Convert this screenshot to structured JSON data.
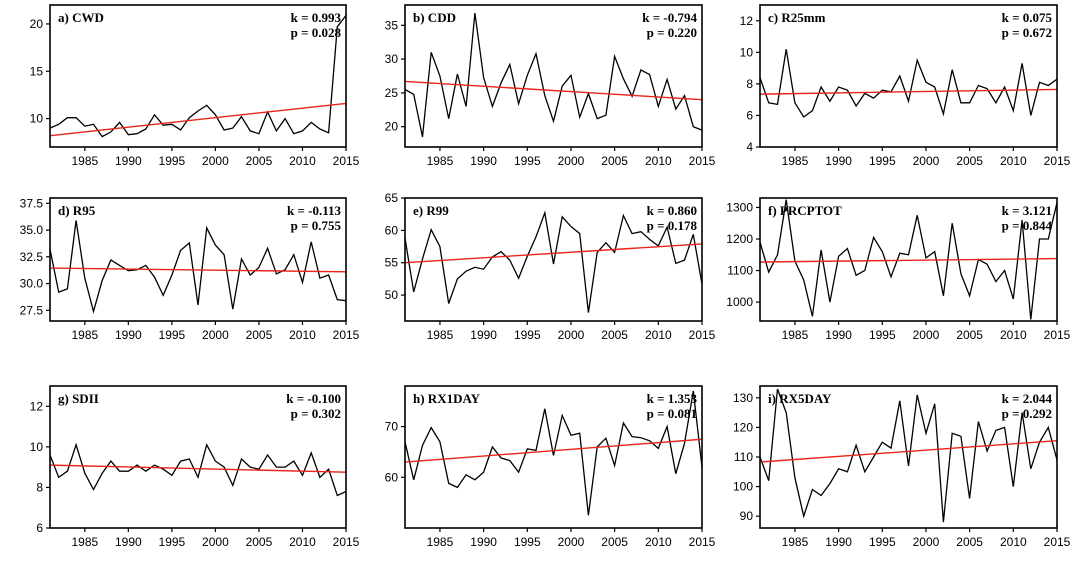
{
  "colors": {
    "series": "#000000",
    "trend": "#e8241c",
    "axis": "#000000"
  },
  "chart_data": [
    {
      "type": "line",
      "title": "a) CWD",
      "k": "k = 0.993",
      "p": "p = 0.028",
      "xlim": [
        1981,
        2015
      ],
      "ylim": [
        7,
        22
      ],
      "xticks": [
        1985,
        1990,
        1995,
        2000,
        2005,
        2010,
        2015
      ],
      "yticks": [
        10,
        15,
        20
      ],
      "ytick_labels": [
        "10",
        "15",
        "20"
      ],
      "x": [
        1981,
        1982,
        1983,
        1984,
        1985,
        1986,
        1987,
        1988,
        1989,
        1990,
        1991,
        1992,
        1993,
        1994,
        1995,
        1996,
        1997,
        1998,
        1999,
        2000,
        2001,
        2002,
        2003,
        2004,
        2005,
        2006,
        2007,
        2008,
        2009,
        2010,
        2011,
        2012,
        2013,
        2014,
        2015
      ],
      "values": [
        9.0,
        9.4,
        10.1,
        10.1,
        9.2,
        9.4,
        8.1,
        8.6,
        9.6,
        8.3,
        8.4,
        8.9,
        10.4,
        9.3,
        9.4,
        8.8,
        10.1,
        10.8,
        11.4,
        10.4,
        8.8,
        9.0,
        10.2,
        8.7,
        8.4,
        10.7,
        8.7,
        10.0,
        8.4,
        8.7,
        9.6,
        8.9,
        8.5,
        19.7,
        20.9
      ],
      "trend": [
        8.2,
        11.6
      ]
    },
    {
      "type": "line",
      "title": "b) CDD",
      "k": "k = -0.794",
      "p": "p = 0.220",
      "xlim": [
        1981,
        2015
      ],
      "ylim": [
        17,
        38
      ],
      "xticks": [
        1985,
        1990,
        1995,
        2000,
        2005,
        2010,
        2015
      ],
      "yticks": [
        20,
        25,
        30,
        35
      ],
      "ytick_labels": [
        "20",
        "25",
        "30",
        "35"
      ],
      "x": [
        1981,
        1982,
        1983,
        1984,
        1985,
        1986,
        1987,
        1988,
        1989,
        1990,
        1991,
        1992,
        1993,
        1994,
        1995,
        1996,
        1997,
        1998,
        1999,
        2000,
        2001,
        2002,
        2003,
        2004,
        2005,
        2006,
        2007,
        2008,
        2009,
        2010,
        2011,
        2012,
        2013,
        2014,
        2015
      ],
      "values": [
        25.5,
        24.8,
        18.5,
        31.0,
        27.5,
        21.2,
        27.8,
        23.0,
        36.8,
        27.3,
        23.0,
        26.5,
        29.2,
        23.4,
        27.6,
        30.8,
        24.6,
        20.8,
        26.0,
        27.6,
        21.4,
        24.9,
        21.2,
        21.7,
        30.4,
        27.1,
        24.5,
        28.4,
        27.7,
        23.0,
        27.0,
        22.6,
        24.6,
        20.0,
        19.5
      ],
      "trend": [
        26.7,
        24.0
      ]
    },
    {
      "type": "line",
      "title": "c) R25mm",
      "k": "k = 0.075",
      "p": "p = 0.672",
      "xlim": [
        1981,
        2015
      ],
      "ylim": [
        4,
        13
      ],
      "xticks": [
        1985,
        1990,
        1995,
        2000,
        2005,
        2010,
        2015
      ],
      "yticks": [
        4,
        6,
        8,
        10,
        12
      ],
      "ytick_labels": [
        "4",
        "6",
        "8",
        "10",
        "12"
      ],
      "x": [
        1981,
        1982,
        1983,
        1984,
        1985,
        1986,
        1987,
        1988,
        1989,
        1990,
        1991,
        1992,
        1993,
        1994,
        1995,
        1996,
        1997,
        1998,
        1999,
        2000,
        2001,
        2002,
        2003,
        2004,
        2005,
        2006,
        2007,
        2008,
        2009,
        2010,
        2011,
        2012,
        2013,
        2014,
        2015
      ],
      "values": [
        8.4,
        6.8,
        6.7,
        10.2,
        6.8,
        5.9,
        6.3,
        7.8,
        6.9,
        7.8,
        7.6,
        6.6,
        7.4,
        7.1,
        7.6,
        7.5,
        8.5,
        6.9,
        9.5,
        8.1,
        7.8,
        6.1,
        8.9,
        6.8,
        6.8,
        7.9,
        7.7,
        6.8,
        7.8,
        6.3,
        9.3,
        6.0,
        8.1,
        7.9,
        8.3
      ],
      "trend": [
        7.35,
        7.65
      ]
    },
    {
      "type": "line",
      "title": "d) R95",
      "k": "k = -0.113",
      "p": "p = 0.755",
      "xlim": [
        1981,
        2015
      ],
      "ylim": [
        26.5,
        38.0
      ],
      "xticks": [
        1985,
        1990,
        1995,
        2000,
        2005,
        2010,
        2015
      ],
      "yticks": [
        27.5,
        30.0,
        32.5,
        35.0,
        37.5
      ],
      "ytick_labels": [
        "27.5",
        "30.0",
        "32.5",
        "35.0",
        "37.5"
      ],
      "x": [
        1981,
        1982,
        1983,
        1984,
        1985,
        1986,
        1987,
        1988,
        1989,
        1990,
        1991,
        1992,
        1993,
        1994,
        1995,
        1996,
        1997,
        1998,
        1999,
        2000,
        2001,
        2002,
        2003,
        2004,
        2005,
        2006,
        2007,
        2008,
        2009,
        2010,
        2011,
        2012,
        2013,
        2014,
        2015
      ],
      "values": [
        33.2,
        29.2,
        29.5,
        35.9,
        30.5,
        27.4,
        30.3,
        32.2,
        31.7,
        31.2,
        31.3,
        31.7,
        30.6,
        28.9,
        30.8,
        33.1,
        33.8,
        28.0,
        35.2,
        33.6,
        32.7,
        27.6,
        32.3,
        30.8,
        31.5,
        33.3,
        30.9,
        31.3,
        32.7,
        30.1,
        33.9,
        30.5,
        30.8,
        28.5,
        28.4
      ],
      "trend": [
        31.45,
        31.1
      ]
    },
    {
      "type": "line",
      "title": "e) R99",
      "k": "k = 0.860",
      "p": "p = 0.178",
      "xlim": [
        1981,
        2015
      ],
      "ylim": [
        46,
        65
      ],
      "xticks": [
        1985,
        1990,
        1995,
        2000,
        2005,
        2010,
        2015
      ],
      "yticks": [
        50,
        55,
        60,
        65
      ],
      "ytick_labels": [
        "50",
        "55",
        "60",
        "65"
      ],
      "x": [
        1981,
        1982,
        1983,
        1984,
        1985,
        1986,
        1987,
        1988,
        1989,
        1990,
        1991,
        1992,
        1993,
        1994,
        1995,
        1996,
        1997,
        1998,
        1999,
        2000,
        2001,
        2002,
        2003,
        2004,
        2005,
        2006,
        2007,
        2008,
        2009,
        2010,
        2011,
        2012,
        2013,
        2014,
        2015
      ],
      "values": [
        58.8,
        50.5,
        55.6,
        60.1,
        57.5,
        48.7,
        52.5,
        53.7,
        54.3,
        54.0,
        55.9,
        56.7,
        55.4,
        52.6,
        56.0,
        59.0,
        62.7,
        54.8,
        62.1,
        60.6,
        59.5,
        47.3,
        56.6,
        58.1,
        56.6,
        62.3,
        59.5,
        59.8,
        58.6,
        57.6,
        60.5,
        54.9,
        55.4,
        59.4,
        51.7
      ],
      "trend": [
        55.0,
        57.9
      ]
    },
    {
      "type": "line",
      "title": "f) PRCPTOT",
      "k": "k = 3.121",
      "p": "p = 0.844",
      "xlim": [
        1981,
        2015
      ],
      "ylim": [
        940,
        1330
      ],
      "xticks": [
        1985,
        1990,
        1995,
        2000,
        2005,
        2010,
        2015
      ],
      "yticks": [
        1000,
        1100,
        1200,
        1300
      ],
      "ytick_labels": [
        "1000",
        "1100",
        "1200",
        "1300"
      ],
      "x": [
        1981,
        1982,
        1983,
        1984,
        1985,
        1986,
        1987,
        1988,
        1989,
        1990,
        1991,
        1992,
        1993,
        1994,
        1995,
        1996,
        1997,
        1998,
        1999,
        2000,
        2001,
        2002,
        2003,
        2004,
        2005,
        2006,
        2007,
        2008,
        2009,
        2010,
        2011,
        2012,
        2013,
        2014,
        2015
      ],
      "values": [
        1190,
        1095,
        1150,
        1325,
        1130,
        1070,
        955,
        1165,
        1000,
        1145,
        1170,
        1085,
        1100,
        1205,
        1160,
        1080,
        1155,
        1150,
        1275,
        1140,
        1160,
        1020,
        1250,
        1090,
        1020,
        1135,
        1120,
        1065,
        1100,
        1010,
        1260,
        945,
        1200,
        1200,
        1315
      ],
      "trend": [
        1127,
        1138
      ]
    },
    {
      "type": "line",
      "title": "g) SDII",
      "k": "k = -0.100",
      "p": "p = 0.302",
      "xlim": [
        1981,
        2015
      ],
      "ylim": [
        6,
        13
      ],
      "xticks": [
        1985,
        1990,
        1995,
        2000,
        2005,
        2010,
        2015
      ],
      "yticks": [
        6,
        8,
        10,
        12
      ],
      "ytick_labels": [
        "6",
        "8",
        "10",
        "12"
      ],
      "x": [
        1981,
        1982,
        1983,
        1984,
        1985,
        1986,
        1987,
        1988,
        1989,
        1990,
        1991,
        1992,
        1993,
        1994,
        1995,
        1996,
        1997,
        1998,
        1999,
        2000,
        2001,
        2002,
        2003,
        2004,
        2005,
        2006,
        2007,
        2008,
        2009,
        2010,
        2011,
        2012,
        2013,
        2014,
        2015
      ],
      "values": [
        9.6,
        8.5,
        8.8,
        10.1,
        8.7,
        7.9,
        8.7,
        9.3,
        8.8,
        8.8,
        9.1,
        8.8,
        9.1,
        8.9,
        8.6,
        9.3,
        9.4,
        8.5,
        10.1,
        9.3,
        9.0,
        8.1,
        9.4,
        9.0,
        8.9,
        9.6,
        9.0,
        9.0,
        9.3,
        8.6,
        9.7,
        8.5,
        8.9,
        7.6,
        7.8
      ],
      "trend": [
        9.1,
        8.75
      ]
    },
    {
      "type": "line",
      "title": "h) RX1DAY",
      "k": "k = 1.353",
      "p": "p = 0.081",
      "xlim": [
        1981,
        2015
      ],
      "ylim": [
        50,
        78
      ],
      "xticks": [
        1985,
        1990,
        1995,
        2000,
        2005,
        2010,
        2015
      ],
      "yticks": [
        60,
        70
      ],
      "ytick_labels": [
        "60",
        "70"
      ],
      "x": [
        1981,
        1982,
        1983,
        1984,
        1985,
        1986,
        1987,
        1988,
        1989,
        1990,
        1991,
        1992,
        1993,
        1994,
        1995,
        1996,
        1997,
        1998,
        1999,
        2000,
        2001,
        2002,
        2003,
        2004,
        2005,
        2006,
        2007,
        2008,
        2009,
        2010,
        2011,
        2012,
        2013,
        2014,
        2015
      ],
      "values": [
        67.0,
        59.5,
        66.3,
        69.8,
        67.0,
        58.8,
        58.0,
        60.5,
        59.5,
        61.0,
        66.0,
        63.8,
        63.3,
        61.0,
        65.6,
        65.3,
        73.5,
        64.3,
        72.2,
        68.3,
        68.7,
        52.5,
        66.0,
        67.7,
        62.3,
        70.7,
        68.0,
        67.8,
        67.2,
        65.7,
        70.0,
        60.7,
        66.7,
        77.0,
        62.0
      ],
      "trend": [
        63.0,
        67.5
      ]
    },
    {
      "type": "line",
      "title": "i) RX5DAY",
      "k": "k = 2.044",
      "p": "p = 0.292",
      "xlim": [
        1981,
        2015
      ],
      "ylim": [
        86,
        134
      ],
      "xticks": [
        1985,
        1990,
        1995,
        2000,
        2005,
        2010,
        2015
      ],
      "yticks": [
        90,
        100,
        110,
        120,
        130
      ],
      "ytick_labels": [
        "90",
        "100",
        "110",
        "120",
        "130"
      ],
      "x": [
        1981,
        1982,
        1983,
        1984,
        1985,
        1986,
        1987,
        1988,
        1989,
        1990,
        1991,
        1992,
        1993,
        1994,
        1995,
        1996,
        1997,
        1998,
        1999,
        2000,
        2001,
        2002,
        2003,
        2004,
        2005,
        2006,
        2007,
        2008,
        2009,
        2010,
        2011,
        2012,
        2013,
        2014,
        2015
      ],
      "values": [
        110,
        102,
        133,
        125,
        103,
        90,
        99,
        97,
        101,
        106,
        105,
        114,
        105,
        110,
        115,
        113,
        129,
        107,
        131,
        118,
        128,
        88,
        118,
        117,
        96,
        122,
        112,
        119,
        120,
        100,
        125,
        106,
        115,
        120,
        109
      ],
      "trend": [
        108.3,
        115.5
      ]
    }
  ]
}
